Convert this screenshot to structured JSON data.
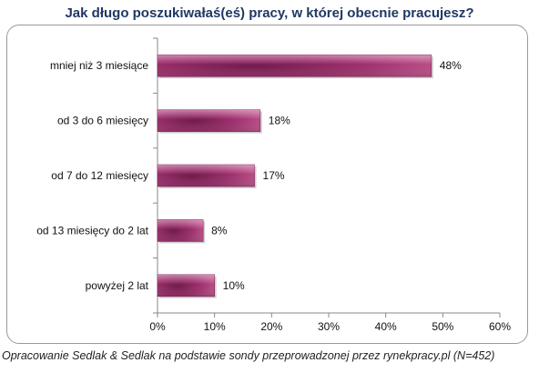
{
  "chart_data": {
    "type": "bar",
    "orientation": "horizontal",
    "title": "Jak długo poszukiwałaś(eś) pracy, w której obecnie pracujesz?",
    "categories": [
      "mniej niż 3 miesiące",
      "od 3 do 6 miesięcy",
      "od 7 do 12 miesięcy",
      "od 13 miesięcy do 2 lat",
      "powyżej 2 lat"
    ],
    "values": [
      48,
      18,
      17,
      8,
      10
    ],
    "data_labels": [
      "48%",
      "18%",
      "17%",
      "8%",
      "10%"
    ],
    "xlim": [
      0,
      60
    ],
    "x_ticks": [
      0,
      10,
      20,
      30,
      40,
      50,
      60
    ],
    "x_tick_labels": [
      "0%",
      "10%",
      "20%",
      "30%",
      "40%",
      "50%",
      "60%"
    ],
    "xlabel": "",
    "ylabel": "",
    "grid": false,
    "bar_color": "#9E2F6E"
  },
  "caption": "Opracowanie Sedlak & Sedlak na podstawie sondy przeprowadzonej przez rynekpracy.pl (N=452)"
}
